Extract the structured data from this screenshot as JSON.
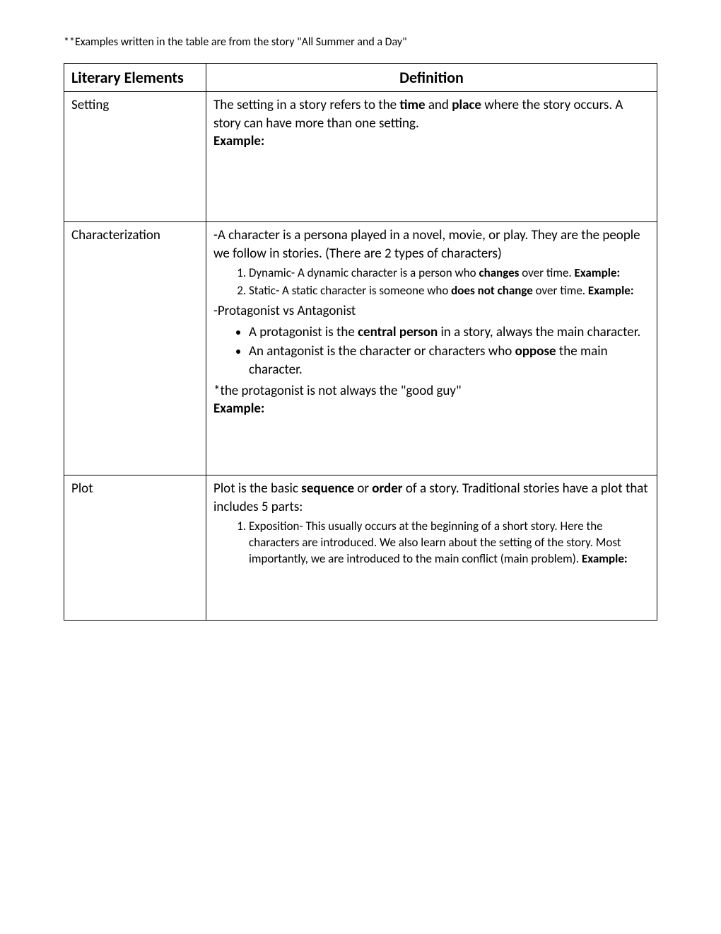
{
  "note": "**Examples written in the table are from the story \"All Summer and a Day\"",
  "headers": {
    "col1": "Literary Elements",
    "col2": "Definition"
  },
  "rows": {
    "setting": {
      "label": "Setting",
      "text_before": "The setting in a story refers to the ",
      "bold1": "time",
      "text_mid1": " and ",
      "bold2": "place",
      "text_after": " where the story occurs.  A story can have more than one setting.",
      "example_label": "Example:"
    },
    "characterization": {
      "label": "Characterization",
      "intro": "-A character is a persona played in a novel, movie, or play.  They are the people we follow in stories.  (There are 2 types of characters)",
      "li1_prefix": "Dynamic- A dynamic character is a person who ",
      "li1_bold": "changes",
      "li1_suffix": " over time.  ",
      "li1_example": "Example:",
      "li2_prefix": "Static- A static character is someone who ",
      "li2_bold": "does not change",
      "li2_suffix": " over time.  ",
      "li2_example": "Example:",
      "protag_heading": "-Protagonist vs Antagonist",
      "bullet1_prefix": "A protagonist is the ",
      "bullet1_bold": "central person",
      "bullet1_suffix": " in a story, always the main character.",
      "bullet2_prefix": "An antagonist is the character or characters who ",
      "bullet2_bold": "oppose",
      "bullet2_suffix": " the main character.",
      "note_line": "*the protagonist is not always the \"good guy\"",
      "example_label": "Example:"
    },
    "plot": {
      "label": "Plot",
      "intro_prefix": "Plot is the basic ",
      "intro_bold1": "sequence",
      "intro_mid": " or ",
      "intro_bold2": "order",
      "intro_suffix": " of a story.  Traditional stories have a plot that includes 5 parts:",
      "li1_text": "Exposition- This usually occurs at the beginning of a short story.  Here the characters are introduced.  We also learn about the setting of the story.  Most importantly, we are introduced to the main conflict (main problem).  ",
      "li1_example": "Example:"
    }
  }
}
